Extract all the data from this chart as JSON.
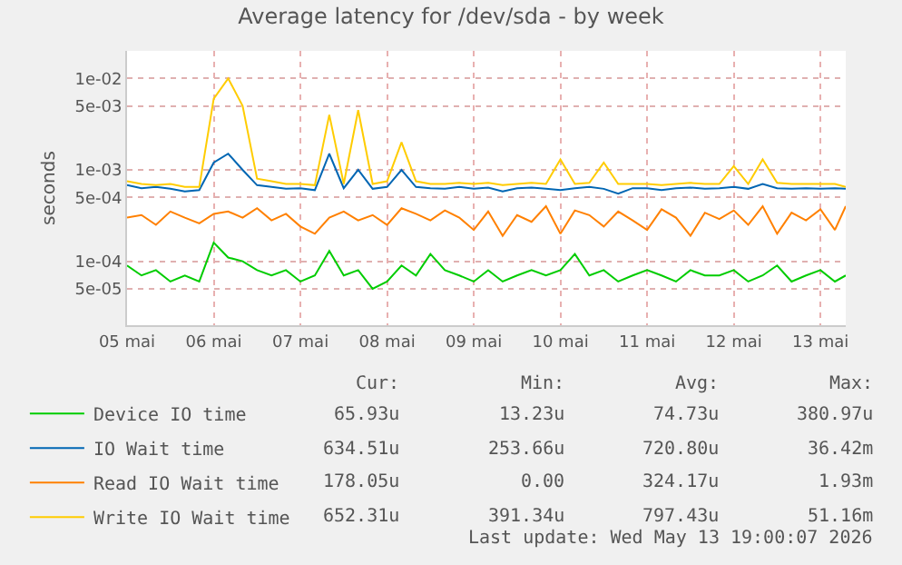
{
  "chart_data": {
    "type": "line",
    "title": "Average latency for /dev/sda - by week",
    "ylabel": "seconds",
    "x": [
      "2026-05-05T12:00",
      "2026-05-05T16:00",
      "2026-05-05T20:00",
      "2026-05-06T00:00",
      "2026-05-06T04:00",
      "2026-05-06T08:00",
      "2026-05-06T12:00",
      "2026-05-06T16:00",
      "2026-05-06T20:00",
      "2026-05-07T00:00",
      "2026-05-07T04:00",
      "2026-05-07T08:00",
      "2026-05-07T12:00",
      "2026-05-07T16:00",
      "2026-05-07T20:00",
      "2026-05-08T00:00",
      "2026-05-08T04:00",
      "2026-05-08T08:00",
      "2026-05-08T12:00",
      "2026-05-08T16:00",
      "2026-05-08T20:00",
      "2026-05-09T00:00",
      "2026-05-09T04:00",
      "2026-05-09T08:00",
      "2026-05-09T12:00",
      "2026-05-09T16:00",
      "2026-05-09T20:00",
      "2026-05-10T00:00",
      "2026-05-10T04:00",
      "2026-05-10T08:00",
      "2026-05-10T12:00",
      "2026-05-10T16:00",
      "2026-05-10T20:00",
      "2026-05-11T00:00",
      "2026-05-11T04:00",
      "2026-05-11T08:00",
      "2026-05-11T12:00",
      "2026-05-11T16:00",
      "2026-05-11T20:00",
      "2026-05-12T00:00",
      "2026-05-12T04:00",
      "2026-05-12T08:00",
      "2026-05-12T12:00",
      "2026-05-12T16:00",
      "2026-05-12T20:00",
      "2026-05-13T00:00",
      "2026-05-13T04:00",
      "2026-05-13T08:00",
      "2026-05-13T12:00",
      "2026-05-13T16:00",
      "2026-05-13T19:00"
    ],
    "series": [
      {
        "name": "Device IO time",
        "color": "#00cc00",
        "values": [
          9e-05,
          7e-05,
          8e-05,
          6e-05,
          7e-05,
          6e-05,
          0.00016,
          0.00011,
          0.0001,
          8e-05,
          7e-05,
          8e-05,
          6e-05,
          7e-05,
          0.00013,
          7e-05,
          8e-05,
          5e-05,
          6e-05,
          9e-05,
          7e-05,
          0.00012,
          8e-05,
          7e-05,
          6e-05,
          8e-05,
          6e-05,
          7e-05,
          8e-05,
          7e-05,
          8e-05,
          0.00012,
          7e-05,
          8e-05,
          6e-05,
          7e-05,
          8e-05,
          7e-05,
          6e-05,
          8e-05,
          7e-05,
          7e-05,
          8e-05,
          6e-05,
          7e-05,
          9e-05,
          6e-05,
          7e-05,
          8e-05,
          6e-05,
          7e-05
        ]
      },
      {
        "name": "IO Wait time",
        "color": "#0066b3",
        "values": [
          0.00068,
          0.00063,
          0.00065,
          0.00062,
          0.00058,
          0.0006,
          0.0012,
          0.0015,
          0.001,
          0.00068,
          0.00065,
          0.00062,
          0.00063,
          0.0006,
          0.0015,
          0.00063,
          0.001,
          0.00062,
          0.00065,
          0.001,
          0.00065,
          0.00063,
          0.00062,
          0.00065,
          0.00062,
          0.00064,
          0.00058,
          0.00063,
          0.00064,
          0.00062,
          0.0006,
          0.00063,
          0.00065,
          0.00062,
          0.00055,
          0.00063,
          0.00063,
          0.0006,
          0.00063,
          0.00064,
          0.00062,
          0.00063,
          0.00065,
          0.00062,
          0.0007,
          0.00063,
          0.00062,
          0.00063,
          0.00062,
          0.00063,
          0.00062
        ]
      },
      {
        "name": "Read IO Wait time",
        "color": "#ff8000",
        "values": [
          0.0003,
          0.00032,
          0.00025,
          0.00035,
          0.0003,
          0.00026,
          0.00033,
          0.00035,
          0.0003,
          0.00038,
          0.00028,
          0.00033,
          0.00024,
          0.0002,
          0.0003,
          0.00035,
          0.00028,
          0.00032,
          0.00025,
          0.00038,
          0.00033,
          0.00028,
          0.00036,
          0.0003,
          0.00022,
          0.00035,
          0.00019,
          0.00032,
          0.00027,
          0.0004,
          0.0002,
          0.00036,
          0.00032,
          0.00024,
          0.00035,
          0.00028,
          0.00022,
          0.00037,
          0.0003,
          0.00019,
          0.00034,
          0.00029,
          0.00036,
          0.00025,
          0.0004,
          0.0002,
          0.00034,
          0.00028,
          0.00037,
          0.00022,
          0.0004
        ]
      },
      {
        "name": "Write IO Wait time",
        "color": "#ffcc00",
        "values": [
          0.00075,
          0.0007,
          0.00068,
          0.0007,
          0.00065,
          0.00065,
          0.006,
          0.01,
          0.005,
          0.0008,
          0.00075,
          0.0007,
          0.0007,
          0.00068,
          0.004,
          0.0007,
          0.0045,
          0.0007,
          0.00075,
          0.002,
          0.00075,
          0.0007,
          0.0007,
          0.00072,
          0.0007,
          0.00072,
          0.00068,
          0.0007,
          0.00072,
          0.0007,
          0.0013,
          0.0007,
          0.00072,
          0.0012,
          0.0007,
          0.0007,
          0.0007,
          0.00068,
          0.0007,
          0.00072,
          0.0007,
          0.0007,
          0.0011,
          0.0007,
          0.0013,
          0.00072,
          0.0007,
          0.0007,
          0.0007,
          0.0007,
          0.00065
        ]
      }
    ],
    "log": true,
    "xlim": [
      "2026-05-05T12:00",
      "2026-05-13T19:00"
    ],
    "xticks": [
      {
        "value": "2026-05-05T12:00",
        "label": "05 mai"
      },
      {
        "value": "2026-05-06T12:00",
        "label": "06 mai"
      },
      {
        "value": "2026-05-07T12:00",
        "label": "07 mai"
      },
      {
        "value": "2026-05-08T12:00",
        "label": "08 mai"
      },
      {
        "value": "2026-05-09T12:00",
        "label": "09 mai"
      },
      {
        "value": "2026-05-10T12:00",
        "label": "10 mai"
      },
      {
        "value": "2026-05-11T12:00",
        "label": "11 mai"
      },
      {
        "value": "2026-05-12T12:00",
        "label": "12 mai"
      },
      {
        "value": "2026-05-13T12:00",
        "label": "13 mai"
      }
    ],
    "ylim": [
      2e-05,
      0.02
    ],
    "yticks": [
      {
        "value": 5e-05,
        "label": "5e-05"
      },
      {
        "value": 0.0001,
        "label": "1e-04"
      },
      {
        "value": 0.0005,
        "label": "5e-04"
      },
      {
        "value": 0.001,
        "label": "1e-03"
      },
      {
        "value": 0.005,
        "label": "5e-03"
      },
      {
        "value": 0.01,
        "label": "1e-02"
      }
    ],
    "grid": true,
    "legend": "bottom left",
    "marker": "none",
    "line_style": "solid",
    "annotations": [
      "Cur:",
      "Min:",
      "Avg:",
      "Max:",
      "65.93u",
      "13.23u",
      "74.73u",
      "380.97u",
      "634.51u",
      "253.66u",
      "720.80u",
      "36.42m",
      "178.05u",
      "0.00",
      "324.17u",
      "1.93m",
      "652.31u",
      "391.34u",
      "797.43u",
      "51.16m",
      "Last update: Wed May 13 19:00:07 2026"
    ]
  }
}
